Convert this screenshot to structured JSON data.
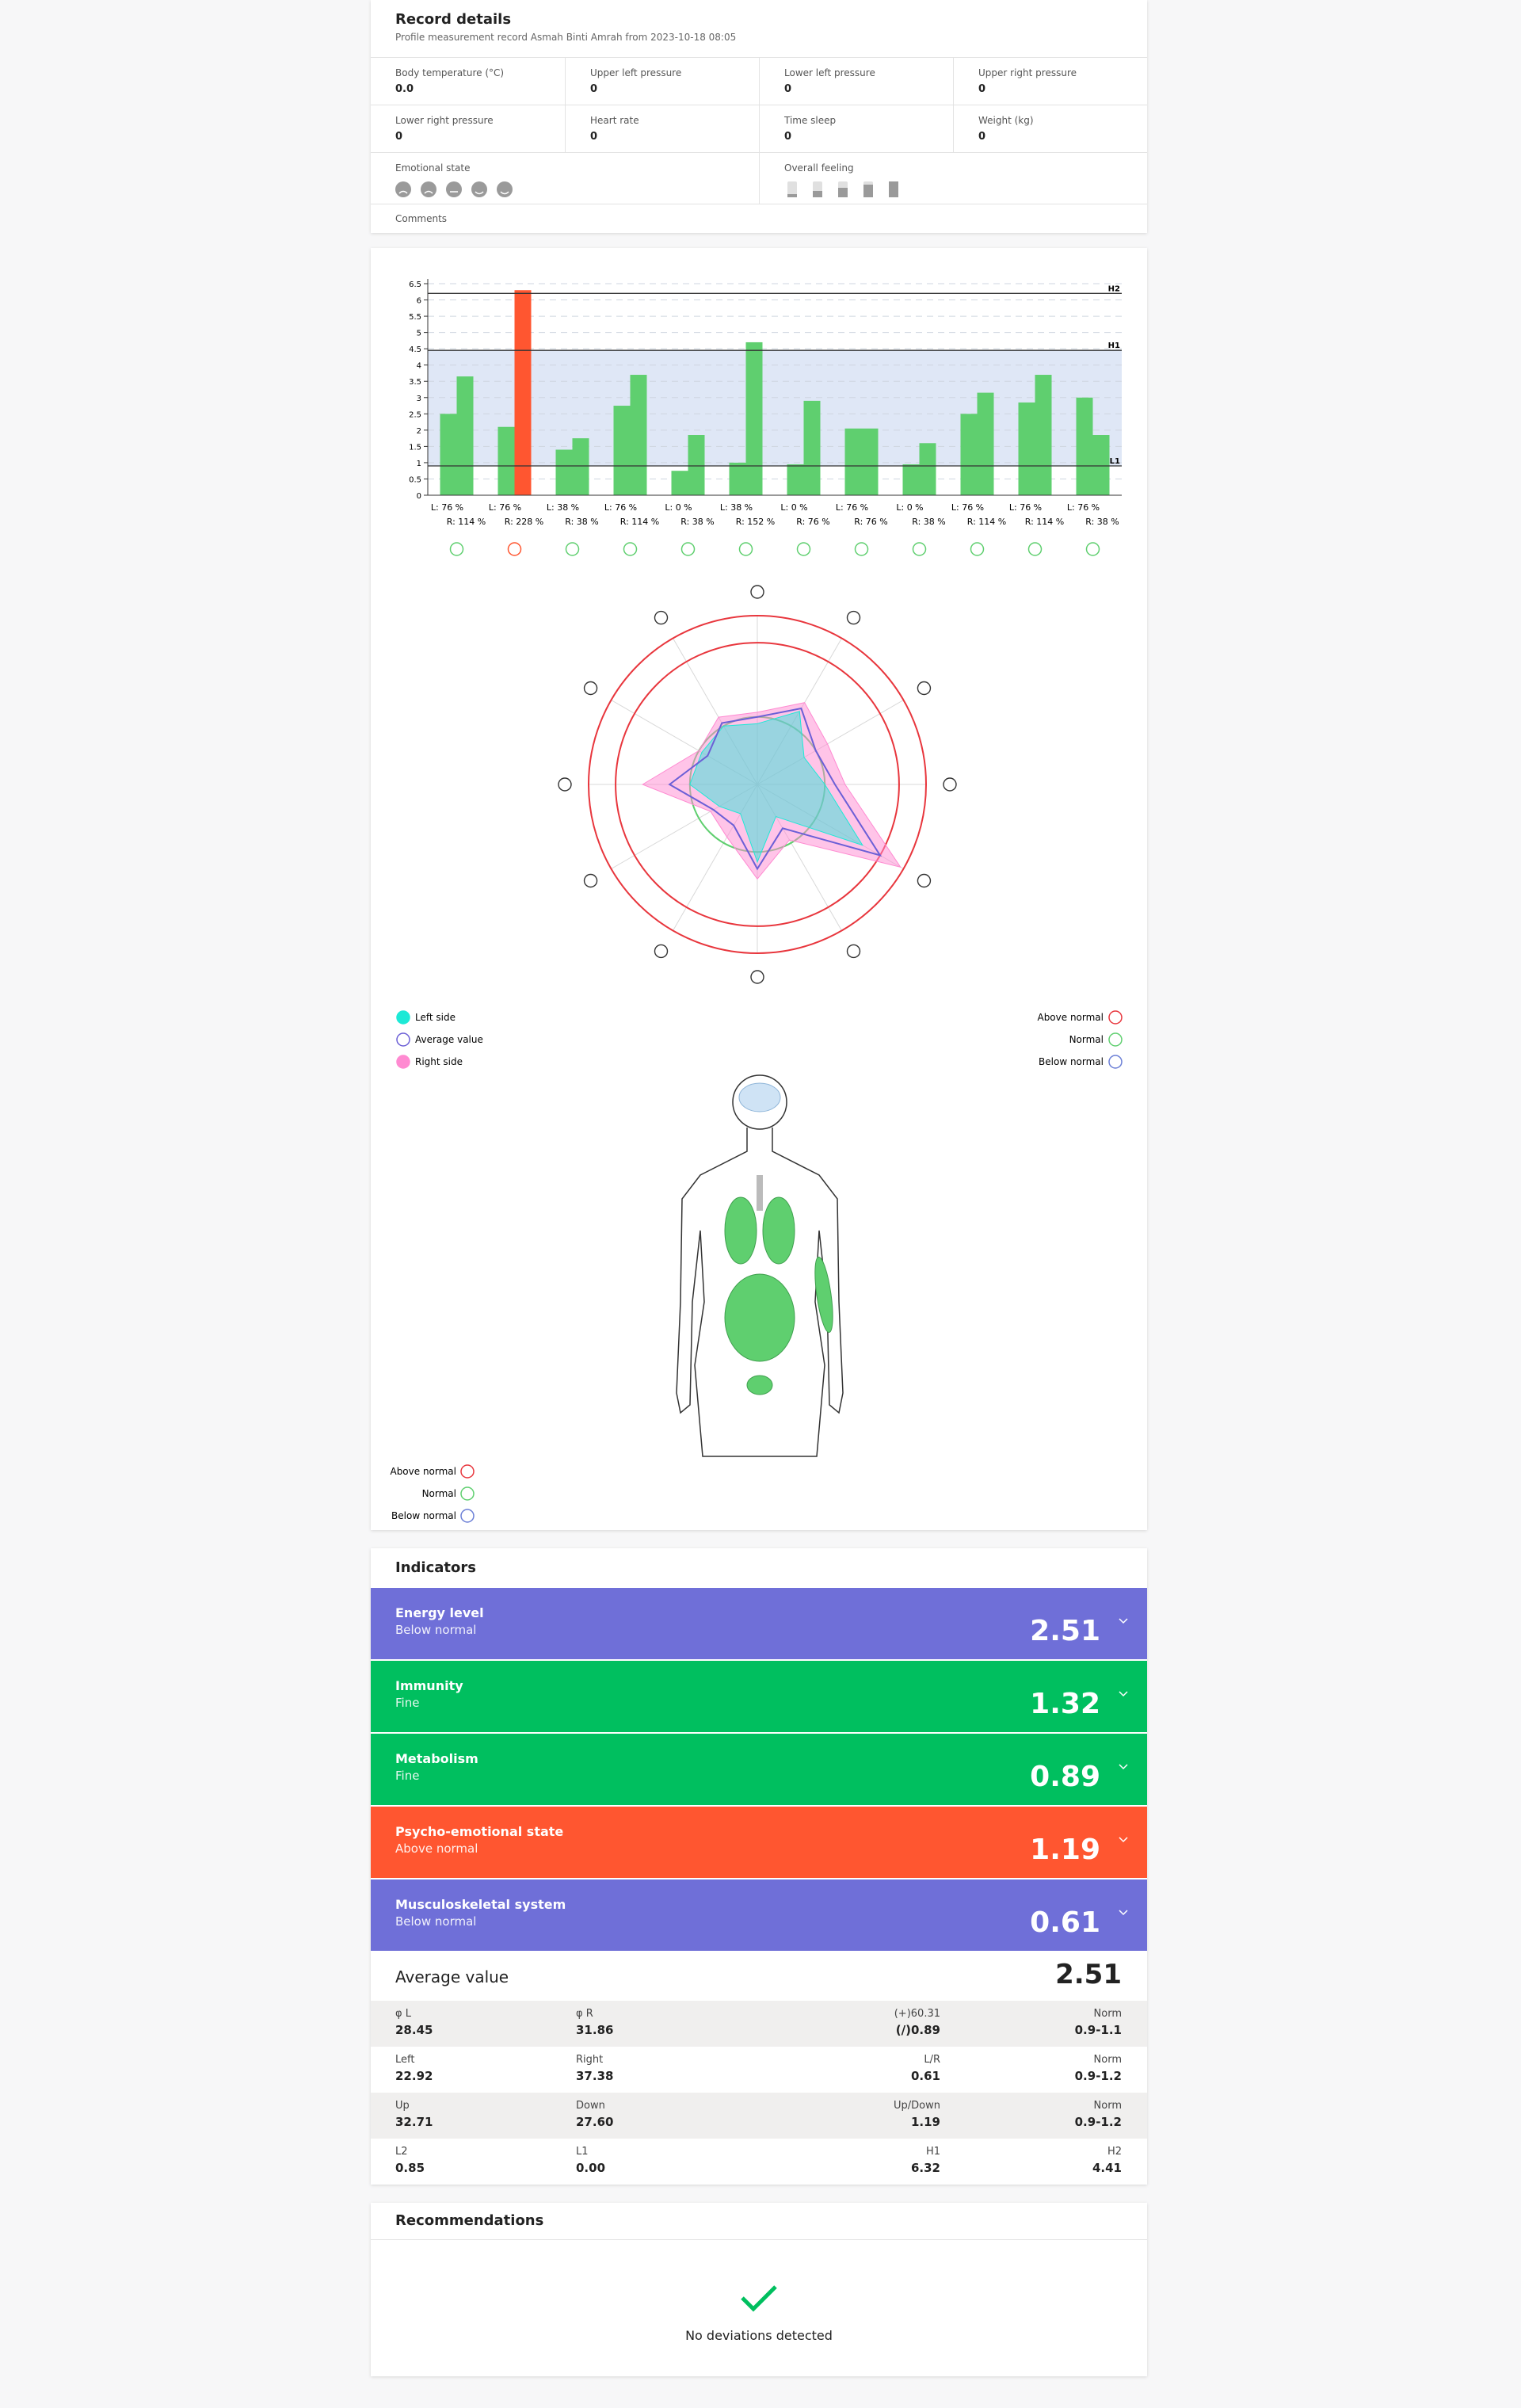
{
  "record": {
    "title": "Record details",
    "subtitle": "Profile measurement record Asmah Binti Amrah from 2023-10-18 08:05",
    "fields": [
      {
        "label": "Body temperature (°C)",
        "value": "0.0"
      },
      {
        "label": "Upper left pressure",
        "value": "0"
      },
      {
        "label": "Lower left pressure",
        "value": "0"
      },
      {
        "label": "Upper right pressure",
        "value": "0"
      },
      {
        "label": "Lower right pressure",
        "value": "0"
      },
      {
        "label": "Heart rate",
        "value": "0"
      },
      {
        "label": "Time sleep",
        "value": "0"
      },
      {
        "label": "Weight (kg)",
        "value": "0"
      }
    ],
    "emotional_state": "Emotional state",
    "overall_feeling": "Overall feeling",
    "comments": "Comments"
  },
  "chart_data": [
    {
      "type": "bar",
      "ylim": [
        0,
        6.5
      ],
      "yticks": [
        0,
        0.5,
        1,
        1.5,
        2,
        2.5,
        3,
        3.5,
        4,
        4.5,
        5,
        5.5,
        6,
        6.5
      ],
      "grid": true,
      "series": [
        {
          "color": "#5fcf6f",
          "colors": [
            "#5fcf6f",
            "#5fcf6f",
            "#5fcf6f",
            "#5fcf6f",
            "#5fcf6f",
            "#5fcf6f",
            "#5fcf6f",
            "#5fcf6f",
            "#5fcf6f",
            "#5fcf6f",
            "#5fcf6f",
            "#5fcf6f"
          ],
          "values": [
            2.5,
            2.1,
            1.4,
            2.75,
            0.75,
            1.0,
            0.95,
            2.05,
            0.95,
            2.5,
            2.85,
            3.0
          ]
        },
        {
          "color": "#5fcf6f",
          "colors": [
            "#5fcf6f",
            "#ff5630",
            "#5fcf6f",
            "#5fcf6f",
            "#5fcf6f",
            "#5fcf6f",
            "#5fcf6f",
            "#5fcf6f",
            "#5fcf6f",
            "#5fcf6f",
            "#5fcf6f",
            "#5fcf6f"
          ],
          "values": [
            3.65,
            6.3,
            1.75,
            3.7,
            1.85,
            4.7,
            2.9,
            2.05,
            1.6,
            3.15,
            3.7,
            1.85
          ]
        }
      ],
      "left_labels": [
        "L: 76 %",
        "L: 76 %",
        "L: 38 %",
        "L: 76 %",
        "L: 0 %",
        "L: 38 %",
        "L: 0 %",
        "L: 76 %",
        "L: 0 %",
        "L: 76 %",
        "L: 76 %",
        "L: 76 %"
      ],
      "right_labels": [
        "R: 114 %",
        "R: 228 %",
        "R: 38 %",
        "R: 114 %",
        "R: 38 %",
        "R: 152 %",
        "R: 76 %",
        "R: 76 %",
        "R: 38 %",
        "R: 114 %",
        "R: 114 %",
        "R: 38 %"
      ],
      "lines": [
        {
          "label": "H2",
          "value": 6.2
        },
        {
          "label": "H1",
          "value": 4.45,
          "band": true
        },
        {
          "label": "L1",
          "value": 0.9,
          "band": true
        }
      ],
      "band_color": "#dfe7f6"
    },
    {
      "type": "radar",
      "rlim": [
        0,
        2.5
      ],
      "rings": [
        {
          "value": 1,
          "color": "#5fcf6f"
        },
        {
          "value": 2.1,
          "color": "#e8363d"
        },
        {
          "value": 2.5,
          "color": "#e8363d"
        }
      ],
      "series": [
        {
          "name": "Left side",
          "color": "#1de9d6",
          "values": [
            0.9,
            1.25,
            0.8,
            1.0,
            1.8,
            0.55,
            1.15,
            0.5,
            0.65,
            1.0,
            0.95,
            1.0
          ]
        },
        {
          "name": "Average value",
          "color": "#6b5fd6",
          "values": [
            1.0,
            1.3,
            1.0,
            1.15,
            2.1,
            0.75,
            1.25,
            0.7,
            0.75,
            1.3,
            0.85,
            1.05
          ]
        },
        {
          "name": "Right side",
          "color": "#ff8ad1",
          "values": [
            1.07,
            1.4,
            1.2,
            1.3,
            2.45,
            0.95,
            1.4,
            0.9,
            0.8,
            1.7,
            1.0,
            1.15
          ]
        }
      ],
      "ring_legend": [
        {
          "name": "Above normal",
          "color": "#e8363d"
        },
        {
          "name": "Normal",
          "color": "#5fcf6f"
        },
        {
          "name": "Below normal",
          "color": "#6b7fd6"
        }
      ]
    }
  ],
  "body_legend": [
    {
      "name": "Above normal",
      "color": "#e8363d"
    },
    {
      "name": "Normal",
      "color": "#5fcf6f"
    },
    {
      "name": "Below normal",
      "color": "#6b7fd6"
    }
  ],
  "indicators": {
    "title": "Indicators",
    "items": [
      {
        "name": "Energy level",
        "status": "Below normal",
        "value": 2.51,
        "color": "#6f6fd8"
      },
      {
        "name": "Immunity",
        "status": "Fine",
        "value": 1.32,
        "color": "#00bf5f"
      },
      {
        "name": "Metabolism",
        "status": "Fine",
        "value": 0.89,
        "color": "#00bf5f"
      },
      {
        "name": "Psycho-emotional state",
        "status": "Above normal",
        "value": 1.19,
        "color": "#ff5630"
      },
      {
        "name": "Musculoskeletal system",
        "status": "Below normal",
        "value": 0.61,
        "color": "#6f6fd8"
      }
    ],
    "average": {
      "label": "Average value",
      "value": "2.51"
    },
    "stats": [
      [
        {
          "label": "φ L",
          "value": "28.45"
        },
        {
          "label": "φ R",
          "value": "31.86"
        },
        {
          "label": "(+)60.31",
          "value": "(/)0.89"
        },
        {
          "label": "Norm",
          "value": "0.9-1.1"
        }
      ],
      [
        {
          "label": "Left",
          "value": "22.92"
        },
        {
          "label": "Right",
          "value": "37.38"
        },
        {
          "label": "L/R",
          "value": "0.61"
        },
        {
          "label": "Norm",
          "value": "0.9-1.2"
        }
      ],
      [
        {
          "label": "Up",
          "value": "32.71"
        },
        {
          "label": "Down",
          "value": "27.60"
        },
        {
          "label": "Up/Down",
          "value": "1.19"
        },
        {
          "label": "Norm",
          "value": "0.9-1.2"
        }
      ],
      [
        {
          "label": "L2",
          "value": "0.85"
        },
        {
          "label": "L1",
          "value": "0.00"
        },
        {
          "label": "H1",
          "value": "6.32"
        },
        {
          "label": "H2",
          "value": "4.41"
        }
      ]
    ]
  },
  "recommendations": {
    "title": "Recommendations",
    "message": "No deviations detected"
  }
}
